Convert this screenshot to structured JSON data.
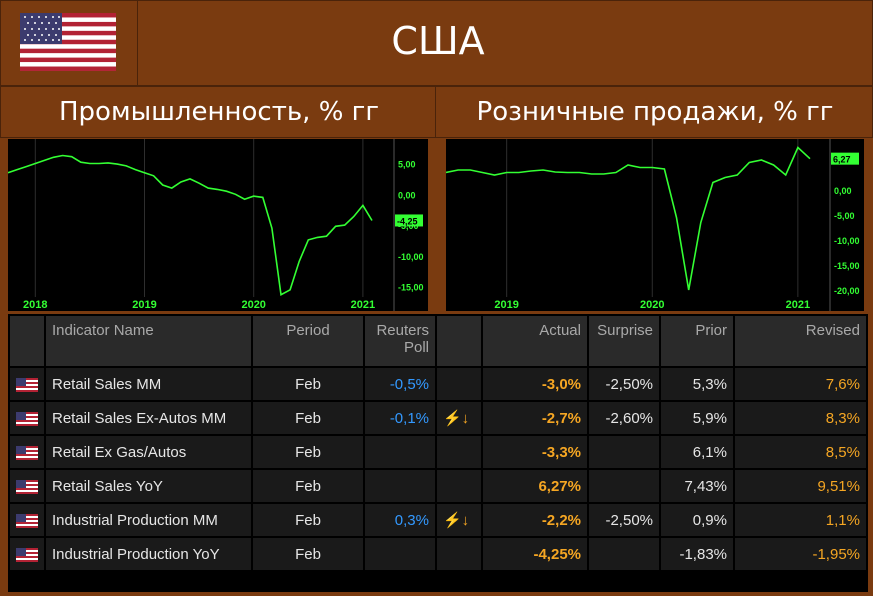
{
  "header": {
    "country": "США"
  },
  "left_chart": {
    "title": "Промышленность, % гг",
    "x_ticks": [
      "2018",
      "2019",
      "2020",
      "2021"
    ],
    "y_ticks": [
      "5,00",
      "0,00",
      "-5,00",
      "-10,00",
      "-15,00"
    ],
    "last_label": "-4,25"
  },
  "right_chart": {
    "title": "Розничные продажи, % гг",
    "x_ticks": [
      "2019",
      "2020",
      "2021"
    ],
    "y_ticks": [
      "0,00",
      "-5,00",
      "-10,00",
      "-15,00",
      "-20,00"
    ],
    "last_label": "6,27"
  },
  "chart_data": [
    {
      "type": "line",
      "title": "Промышленность, % гг",
      "ylim": [
        -17,
        8
      ],
      "x": [
        "2017-10",
        "2017-11",
        "2017-12",
        "2018-01",
        "2018-02",
        "2018-03",
        "2018-04",
        "2018-05",
        "2018-06",
        "2018-07",
        "2018-08",
        "2018-09",
        "2018-10",
        "2018-11",
        "2018-12",
        "2019-01",
        "2019-02",
        "2019-03",
        "2019-04",
        "2019-05",
        "2019-06",
        "2019-07",
        "2019-08",
        "2019-09",
        "2019-10",
        "2019-11",
        "2019-12",
        "2020-01",
        "2020-02",
        "2020-03",
        "2020-04",
        "2020-05",
        "2020-06",
        "2020-07",
        "2020-08",
        "2020-09",
        "2020-10",
        "2020-11",
        "2020-12",
        "2021-01",
        "2021-02"
      ],
      "series": [
        {
          "name": "Industrial Production YoY",
          "color": "#33ff33",
          "values": [
            3.5,
            4.0,
            4.5,
            5.0,
            5.5,
            6.0,
            6.3,
            6.1,
            5.2,
            5.0,
            5.0,
            5.1,
            4.9,
            4.6,
            4.0,
            3.5,
            3.0,
            1.5,
            1.0,
            2.0,
            2.5,
            1.8,
            1.0,
            0.8,
            0.5,
            0.0,
            -0.8,
            -0.3,
            -0.5,
            -5.5,
            -16.3,
            -15.5,
            -10.9,
            -7.4,
            -7.0,
            -6.8,
            -5.2,
            -5.0,
            -3.6,
            -1.8,
            -4.25
          ]
        }
      ]
    },
    {
      "type": "line",
      "title": "Розничные продажи, % гг",
      "ylim": [
        -21,
        9
      ],
      "x": [
        "2018-08",
        "2018-09",
        "2018-10",
        "2018-11",
        "2018-12",
        "2019-01",
        "2019-02",
        "2019-03",
        "2019-04",
        "2019-05",
        "2019-06",
        "2019-07",
        "2019-08",
        "2019-09",
        "2019-10",
        "2019-11",
        "2019-12",
        "2020-01",
        "2020-02",
        "2020-03",
        "2020-04",
        "2020-05",
        "2020-06",
        "2020-07",
        "2020-08",
        "2020-09",
        "2020-10",
        "2020-11",
        "2020-12",
        "2021-01",
        "2021-02"
      ],
      "series": [
        {
          "name": "Retail Sales YoY",
          "color": "#33ff33",
          "values": [
            3.5,
            4.0,
            4.0,
            3.5,
            3.0,
            3.5,
            3.5,
            3.8,
            4.0,
            3.6,
            3.5,
            3.5,
            3.2,
            3.2,
            3.5,
            5.0,
            4.5,
            4.5,
            4.2,
            -5.5,
            -20.0,
            -6.5,
            1.5,
            2.5,
            3.0,
            5.5,
            6.0,
            5.0,
            3.0,
            8.5,
            6.27
          ]
        }
      ]
    }
  ],
  "table": {
    "headers": [
      "",
      "Indicator Name",
      "Period",
      "Reuters Poll",
      "",
      "Actual",
      "Surprise",
      "Prior",
      "Revised"
    ],
    "rows": [
      {
        "name": "Retail Sales MM",
        "period": "Feb",
        "poll": "-0,5%",
        "surprise_icon": "",
        "actual": "-3,0%",
        "surprise": "-2,50%",
        "prior": "5,3%",
        "revised": "7,6%"
      },
      {
        "name": "Retail Sales Ex-Autos MM",
        "period": "Feb",
        "poll": "-0,1%",
        "surprise_icon": "⚡↓",
        "actual": "-2,7%",
        "surprise": "-2,60%",
        "prior": "5,9%",
        "revised": "8,3%"
      },
      {
        "name": "Retail Ex Gas/Autos",
        "period": "Feb",
        "poll": "",
        "surprise_icon": "",
        "actual": "-3,3%",
        "surprise": "",
        "prior": "6,1%",
        "revised": "8,5%"
      },
      {
        "name": "Retail Sales YoY",
        "period": "Feb",
        "poll": "",
        "surprise_icon": "",
        "actual": "6,27%",
        "surprise": "",
        "prior": "7,43%",
        "revised": "9,51%"
      },
      {
        "name": "Industrial Production MM",
        "period": "Feb",
        "poll": "0,3%",
        "surprise_icon": "⚡↓",
        "actual": "-2,2%",
        "surprise": "-2,50%",
        "prior": "0,9%",
        "revised": "1,1%"
      },
      {
        "name": "Industrial Production YoY",
        "period": "Feb",
        "poll": "",
        "surprise_icon": "",
        "actual": "-4,25%",
        "surprise": "",
        "prior": "-1,83%",
        "revised": "-1,95%"
      }
    ]
  },
  "colors": {
    "background": "#7a3b10",
    "line": "#33ff33",
    "label_box": "#33ff33",
    "orange": "#f5a623",
    "blue": "#3399ff"
  }
}
